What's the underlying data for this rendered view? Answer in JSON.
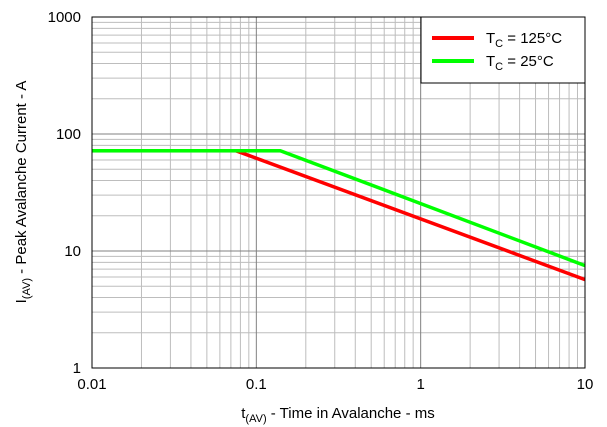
{
  "chart_data": {
    "type": "line",
    "xscale": "log",
    "yscale": "log",
    "xlim": [
      0.01,
      10
    ],
    "ylim": [
      1,
      1000
    ],
    "grid": true,
    "x_ticks": [
      {
        "value": 0.01,
        "label": "0.01"
      },
      {
        "value": 0.1,
        "label": "0.1"
      },
      {
        "value": 1,
        "label": "1"
      },
      {
        "value": 10,
        "label": "10"
      }
    ],
    "y_ticks": [
      {
        "value": 1,
        "label": "1"
      },
      {
        "value": 10,
        "label": "10"
      },
      {
        "value": 100,
        "label": "100"
      },
      {
        "value": 1000,
        "label": "1000"
      }
    ],
    "xlabel": {
      "main": "t",
      "sub": "(AV)",
      "rest": " - Time in Avalanche - ms"
    },
    "ylabel": {
      "main": "I",
      "sub": "(AV)",
      "rest": " - Peak Avalanche Current - A"
    },
    "legend_position": "top-right",
    "series": [
      {
        "name": "TC = 125°C",
        "legend": {
          "main": "T",
          "sub": "C",
          "rest": " = 125°C"
        },
        "color": "#ff0000",
        "points": [
          [
            0.01,
            72
          ],
          [
            0.075,
            72
          ],
          [
            10,
            5.7
          ]
        ]
      },
      {
        "name": "TC = 25°C",
        "legend": {
          "main": "T",
          "sub": "C",
          "rest": " = 25°C"
        },
        "color": "#00ff00",
        "points": [
          [
            0.01,
            72
          ],
          [
            0.14,
            72
          ],
          [
            10,
            7.5
          ]
        ]
      }
    ]
  }
}
